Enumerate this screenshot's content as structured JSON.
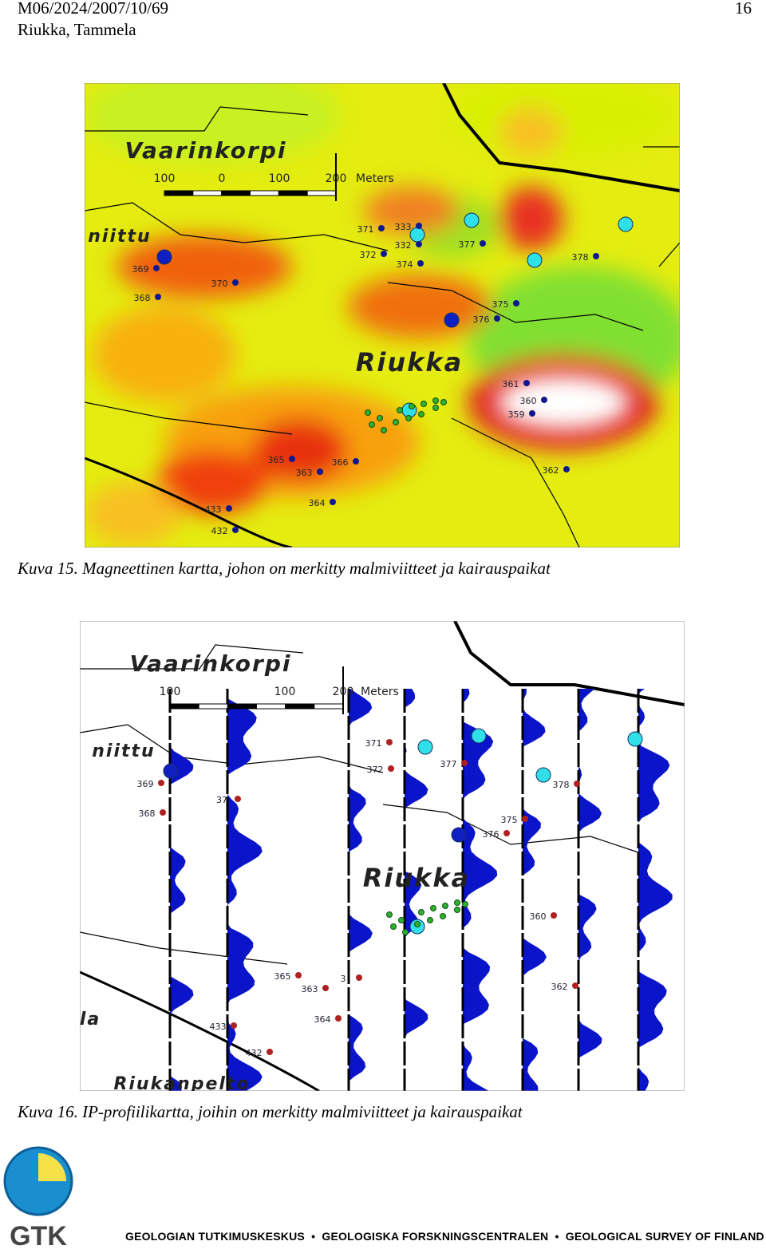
{
  "header": {
    "report_id": "M06/2024/2007/10/69",
    "location": "Riukka, Tammela",
    "page_number": "16"
  },
  "figures": [
    {
      "caption": "Kuva 15. Magneettinen kartta, johon on merkitty malmiviitteet ja kairauspaikat",
      "map": {
        "place_names": [
          "Vaarinkorpi",
          "niittu",
          "Riukka"
        ],
        "scale": {
          "labels": [
            "100",
            "0",
            "100",
            "200"
          ],
          "unit": "Meters"
        },
        "points": [
          "369",
          "368",
          "370",
          "371",
          "372",
          "333",
          "332",
          "374",
          "377",
          "378",
          "375",
          "376",
          "361",
          "360",
          "359",
          "365",
          "363",
          "366",
          "364",
          "362",
          "433",
          "432"
        ]
      }
    },
    {
      "caption": "Kuva 16.  IP-profiilikartta, joihin on merkitty malmiviitteet ja kairauspaikat",
      "map": {
        "place_names": [
          "Vaarinkorpi",
          "niittu",
          "Riukka",
          "Riukanpelto",
          "la"
        ],
        "scale": {
          "labels": [
            "100",
            "100",
            "200"
          ],
          "unit": "Meters"
        },
        "points": [
          "369",
          "368",
          "37",
          "371",
          "372",
          "377",
          "378",
          "375",
          "376",
          "360",
          "365",
          "363",
          "364",
          "362",
          "433",
          "432",
          "3"
        ]
      }
    }
  ],
  "footer": {
    "logo": "GTK",
    "organizations": [
      "GEOLOGIAN TUTKIMUSKESKUS",
      "GEOLOGISKA FORSKNINGSCENTRALEN",
      "GEOLOGICAL SURVEY OF FINLAND"
    ]
  }
}
